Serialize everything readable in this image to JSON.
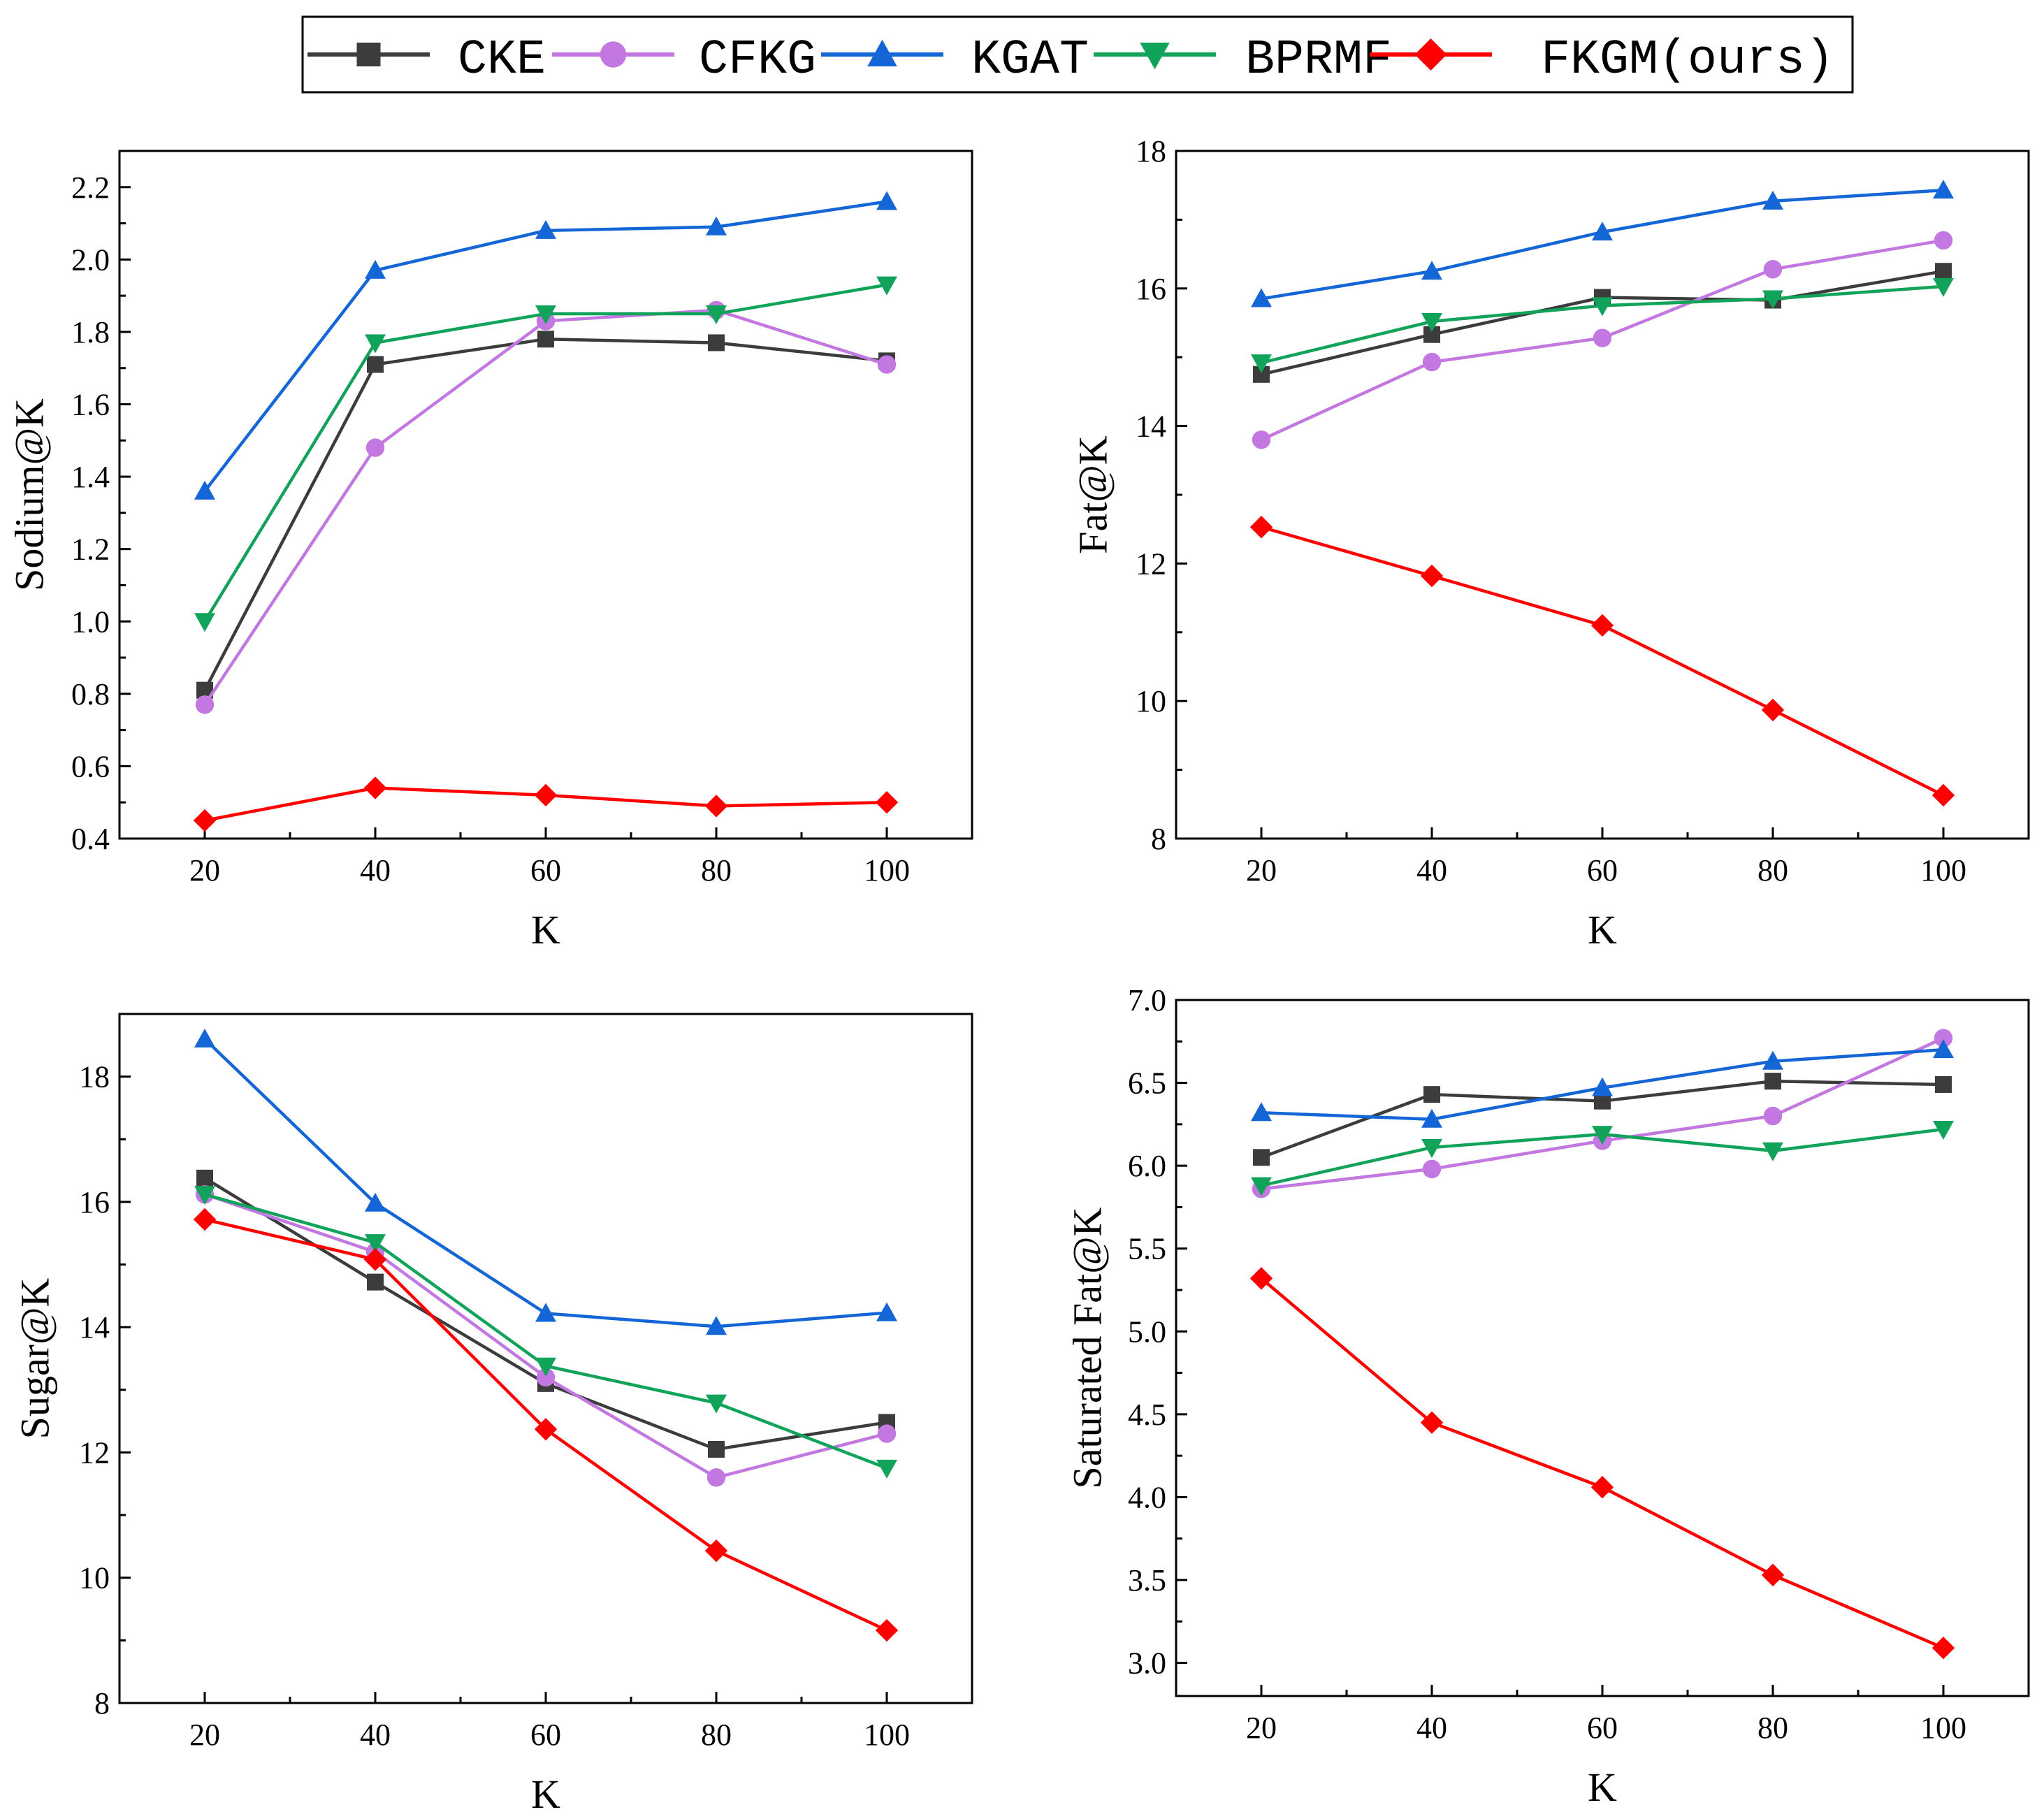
{
  "legend": [
    {
      "name": "CKE",
      "color": "#3c3c3c",
      "marker": "square"
    },
    {
      "name": "CFKG",
      "color": "#c377e0",
      "marker": "circle"
    },
    {
      "name": "KGAT",
      "color": "#1466d6",
      "marker": "triangle-up"
    },
    {
      "name": "BPRMF",
      "color": "#12a35a",
      "marker": "triangle-down"
    },
    {
      "name": "FKGM(ours)",
      "color": "#ff0000",
      "marker": "diamond"
    }
  ],
  "chart_data": [
    {
      "type": "line",
      "xlabel": "K",
      "ylabel": "Sodium@K",
      "x": [
        20,
        40,
        60,
        80,
        100
      ],
      "xticks": [
        "20",
        "40",
        "60",
        "80",
        "100"
      ],
      "xlim": [
        10,
        110
      ],
      "ylim": [
        0.4,
        2.3
      ],
      "yticks": [
        "0.4",
        "0.6",
        "0.8",
        "1.0",
        "1.2",
        "1.4",
        "1.6",
        "1.8",
        "2.0",
        "2.2"
      ],
      "ytick_values": [
        0.4,
        0.6,
        0.8,
        1.0,
        1.2,
        1.4,
        1.6,
        1.8,
        2.0,
        2.2
      ],
      "series": [
        {
          "name": "CKE",
          "values": [
            0.81,
            1.71,
            1.78,
            1.77,
            1.72
          ]
        },
        {
          "name": "CFKG",
          "values": [
            0.77,
            1.48,
            1.83,
            1.86,
            1.71
          ]
        },
        {
          "name": "KGAT",
          "values": [
            1.36,
            1.97,
            2.08,
            2.09,
            2.16
          ]
        },
        {
          "name": "BPRMF",
          "values": [
            1.0,
            1.77,
            1.85,
            1.85,
            1.93
          ]
        },
        {
          "name": "FKGM(ours)",
          "values": [
            0.45,
            0.54,
            0.52,
            0.49,
            0.5
          ]
        }
      ]
    },
    {
      "type": "line",
      "xlabel": "K",
      "ylabel": "Fat@K",
      "x": [
        20,
        40,
        60,
        80,
        100
      ],
      "xticks": [
        "20",
        "40",
        "60",
        "80",
        "100"
      ],
      "xlim": [
        10,
        110
      ],
      "ylim": [
        8,
        18
      ],
      "yticks": [
        "8",
        "10",
        "12",
        "14",
        "16",
        "18"
      ],
      "ytick_values": [
        8,
        10,
        12,
        14,
        16,
        18
      ],
      "series": [
        {
          "name": "CKE",
          "values": [
            14.75,
            15.33,
            15.87,
            15.83,
            16.25
          ]
        },
        {
          "name": "CFKG",
          "values": [
            13.8,
            14.93,
            15.28,
            16.28,
            16.7
          ]
        },
        {
          "name": "KGAT",
          "values": [
            15.85,
            16.25,
            16.82,
            17.27,
            17.43
          ]
        },
        {
          "name": "BPRMF",
          "values": [
            14.92,
            15.52,
            15.75,
            15.85,
            16.03
          ]
        },
        {
          "name": "FKGM(ours)",
          "values": [
            12.53,
            11.82,
            11.1,
            9.87,
            8.63
          ]
        }
      ]
    },
    {
      "type": "line",
      "xlabel": "K",
      "ylabel": "Sugar@K",
      "x": [
        20,
        40,
        60,
        80,
        100
      ],
      "xticks": [
        "20",
        "40",
        "60",
        "80",
        "100"
      ],
      "xlim": [
        10,
        110
      ],
      "ylim": [
        8,
        19
      ],
      "yticks": [
        "8",
        "10",
        "12",
        "14",
        "16",
        "18"
      ],
      "ytick_values": [
        8,
        10,
        12,
        14,
        16,
        18
      ],
      "series": [
        {
          "name": "CKE",
          "values": [
            16.38,
            14.72,
            13.1,
            12.05,
            12.48
          ]
        },
        {
          "name": "CFKG",
          "values": [
            16.12,
            15.2,
            13.2,
            11.6,
            12.3
          ]
        },
        {
          "name": "KGAT",
          "values": [
            18.6,
            15.98,
            14.22,
            14.01,
            14.23
          ]
        },
        {
          "name": "BPRMF",
          "values": [
            16.12,
            15.35,
            13.38,
            12.79,
            11.75
          ]
        },
        {
          "name": "FKGM(ours)",
          "values": [
            15.72,
            15.08,
            12.37,
            10.43,
            9.16
          ]
        }
      ]
    },
    {
      "type": "line",
      "xlabel": "K",
      "ylabel": "Saturated Fat@K",
      "x": [
        20,
        40,
        60,
        80,
        100
      ],
      "xticks": [
        "20",
        "40",
        "60",
        "80",
        "100"
      ],
      "xlim": [
        10,
        110
      ],
      "ylim": [
        2.8,
        7.0
      ],
      "yticks": [
        "3.0",
        "3.5",
        "4.0",
        "4.5",
        "5.0",
        "5.5",
        "6.0",
        "6.5",
        "7.0"
      ],
      "ytick_values": [
        3.0,
        3.5,
        4.0,
        4.5,
        5.0,
        5.5,
        6.0,
        6.5,
        7.0
      ],
      "series": [
        {
          "name": "CKE",
          "values": [
            6.05,
            6.43,
            6.39,
            6.51,
            6.49
          ]
        },
        {
          "name": "CFKG",
          "values": [
            5.86,
            5.98,
            6.15,
            6.3,
            6.77
          ]
        },
        {
          "name": "KGAT",
          "values": [
            6.32,
            6.28,
            6.47,
            6.63,
            6.7
          ]
        },
        {
          "name": "BPRMF",
          "values": [
            5.88,
            6.11,
            6.19,
            6.09,
            6.22
          ]
        },
        {
          "name": "FKGM(ours)",
          "values": [
            5.32,
            4.45,
            4.06,
            3.53,
            3.09
          ]
        }
      ]
    }
  ]
}
